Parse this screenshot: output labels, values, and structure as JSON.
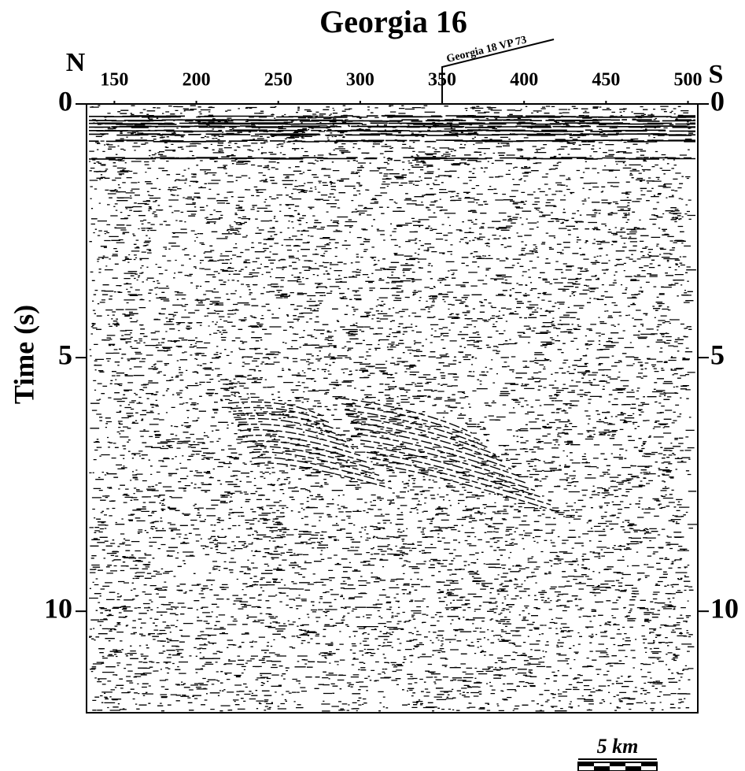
{
  "chart_data": {
    "type": "seismic-section",
    "title": "Georgia 16",
    "ylabel": "Time (s)",
    "left_label": "N",
    "right_label": "S",
    "annotation": {
      "text": "Georgia 18 VP 73",
      "x": 350
    },
    "scale_bar": "5 km",
    "xlim": [
      133,
      506
    ],
    "xticks": [
      150,
      200,
      250,
      300,
      350,
      400,
      450,
      500
    ],
    "ylim": [
      0,
      12
    ],
    "yticks": [
      0,
      5,
      10
    ],
    "y_inverted": true,
    "color": "#000000"
  }
}
